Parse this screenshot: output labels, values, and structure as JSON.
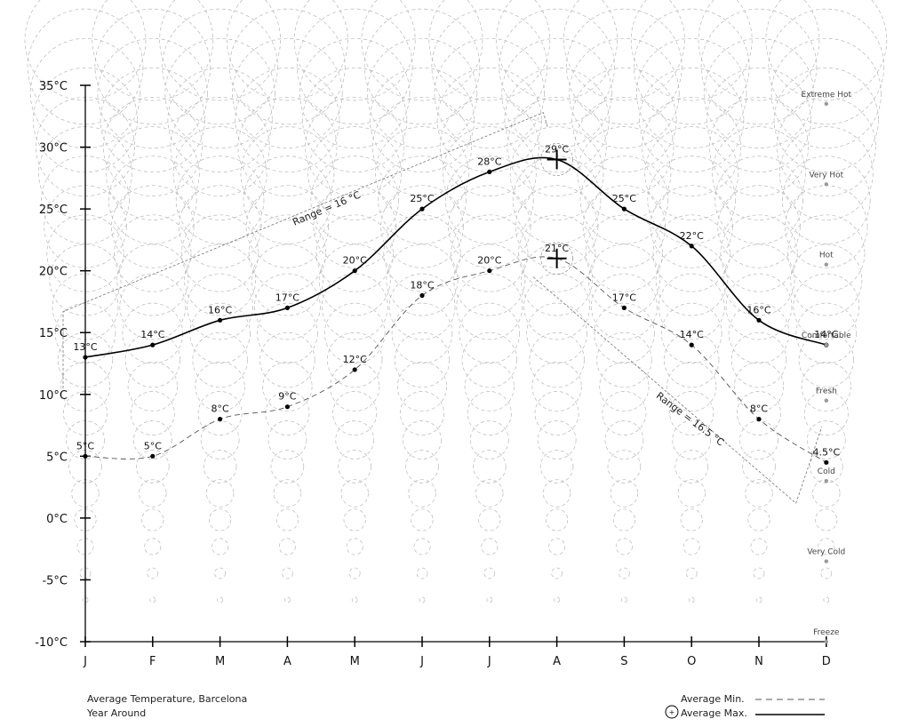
{
  "chart_data": {
    "type": "line",
    "categories": [
      "J",
      "F",
      "M",
      "A",
      "M",
      "J",
      "J",
      "A",
      "S",
      "O",
      "N",
      "D"
    ],
    "yticks": [
      "35°C",
      "30°C",
      "25°C",
      "20°C",
      "15°C",
      "10°C",
      "5°C",
      "0°C",
      "-5°C",
      "-10°C"
    ],
    "ylim": [
      -10,
      35
    ],
    "series": [
      {
        "name": "Average Max.",
        "values": [
          13,
          14,
          16,
          17,
          20,
          25,
          28,
          29,
          25,
          22,
          16,
          14
        ],
        "labels": [
          "13°C",
          "14°C",
          "16°C",
          "17°C",
          "20°C",
          "25°C",
          "28°C",
          "29°C",
          "25°C",
          "22°C",
          "16°C",
          "14°C"
        ],
        "color": "#000000",
        "style": "solid"
      },
      {
        "name": "Average Min.",
        "values": [
          5,
          5,
          8,
          9,
          12,
          18,
          20,
          21,
          17,
          14,
          8,
          4.5
        ],
        "labels": [
          "5°C",
          "5°C",
          "8°C",
          "9°C",
          "12°C",
          "18°C",
          "20°C",
          "21°C",
          "17°C",
          "14°C",
          "8°C",
          "4.5°C"
        ],
        "color": "#555555",
        "style": "dashed"
      }
    ],
    "annotations": [
      {
        "text": "Range = 16 °C",
        "value": 16
      },
      {
        "text": "Range = 16.5 °C",
        "value": 16.5
      }
    ],
    "zones": [
      {
        "label": "Extreme Hot",
        "value": 33.5
      },
      {
        "label": "Very Hot",
        "value": 27
      },
      {
        "label": "Hot",
        "value": 20.5
      },
      {
        "label": "Comfortable",
        "value": 14
      },
      {
        "label": "Fresh",
        "value": 9.5
      },
      {
        "label": "Cold",
        "value": 3
      },
      {
        "label": "Very Cold",
        "value": -3.5
      },
      {
        "label": "Freeze",
        "value": -10
      }
    ],
    "title": "Average Temperature, Barcelona",
    "subtitle": "Year Around",
    "legend": {
      "min_label": "Average Min.",
      "max_label": "Average Max.",
      "placement": "bottom-right"
    }
  }
}
